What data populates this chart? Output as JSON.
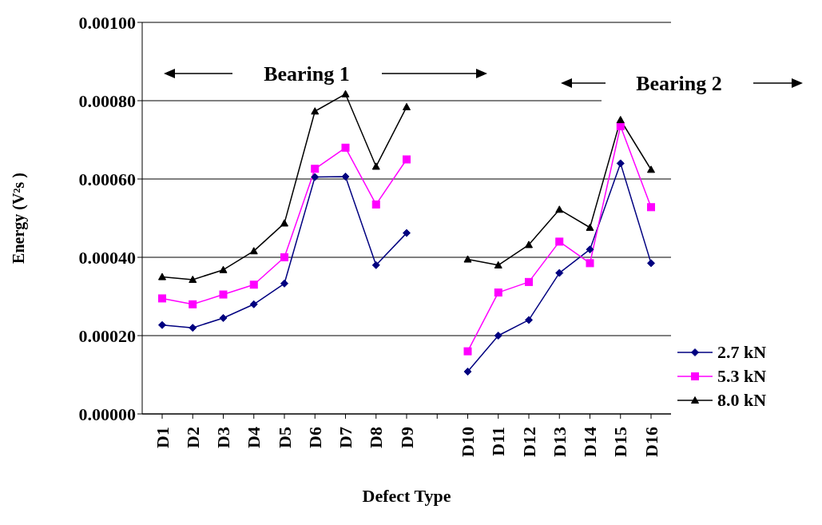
{
  "chart_data": {
    "type": "line",
    "xlabel": "Defect Type",
    "ylabel": "Energy (V²s )",
    "categories": [
      "D1",
      "D2",
      "D3",
      "D4",
      "D5",
      "D6",
      "D7",
      "D8",
      "D9",
      null,
      "D10",
      "D11",
      "D12",
      "D13",
      "D14",
      "D15",
      "D16"
    ],
    "series": [
      {
        "name": "2.7 kN",
        "color": "#000080",
        "marker": "diamond",
        "values": [
          0.000227,
          0.00022,
          0.000245,
          0.00028,
          0.000333,
          0.000605,
          0.000606,
          0.00038,
          0.000462,
          null,
          0.000108,
          0.0002,
          0.00024,
          0.00036,
          0.00042,
          0.00064,
          0.000385
        ]
      },
      {
        "name": "5.3 kN",
        "color": "#ff00ff",
        "marker": "square",
        "values": [
          0.000295,
          0.00028,
          0.000305,
          0.00033,
          0.0004,
          0.000626,
          0.00068,
          0.000535,
          0.00065,
          null,
          0.00016,
          0.00031,
          0.000337,
          0.00044,
          0.000385,
          0.000735,
          0.000528
        ]
      },
      {
        "name": "8.0 kN",
        "color": "#000000",
        "marker": "triangle",
        "values": [
          0.00035,
          0.000343,
          0.000368,
          0.000416,
          0.000487,
          0.000773,
          0.000817,
          0.000632,
          0.000784,
          null,
          0.000395,
          0.00038,
          0.000432,
          0.000522,
          0.000476,
          0.000751,
          0.000624
        ]
      }
    ],
    "ylim": [
      0,
      0.001
    ],
    "yticks": [
      {
        "value": 0,
        "label": "0.00000"
      },
      {
        "value": 0.0002,
        "label": "0.00020"
      },
      {
        "value": 0.0004,
        "label": "0.00040"
      },
      {
        "value": 0.0006,
        "label": "0.00060"
      },
      {
        "value": 0.0008,
        "label": "0.00080"
      },
      {
        "value": 0.001,
        "label": "0.00100"
      }
    ],
    "grid": "y",
    "legend": "bottom right",
    "line_style": "solid",
    "annotations": [
      "Bearing 1",
      "Bearing 2"
    ]
  }
}
